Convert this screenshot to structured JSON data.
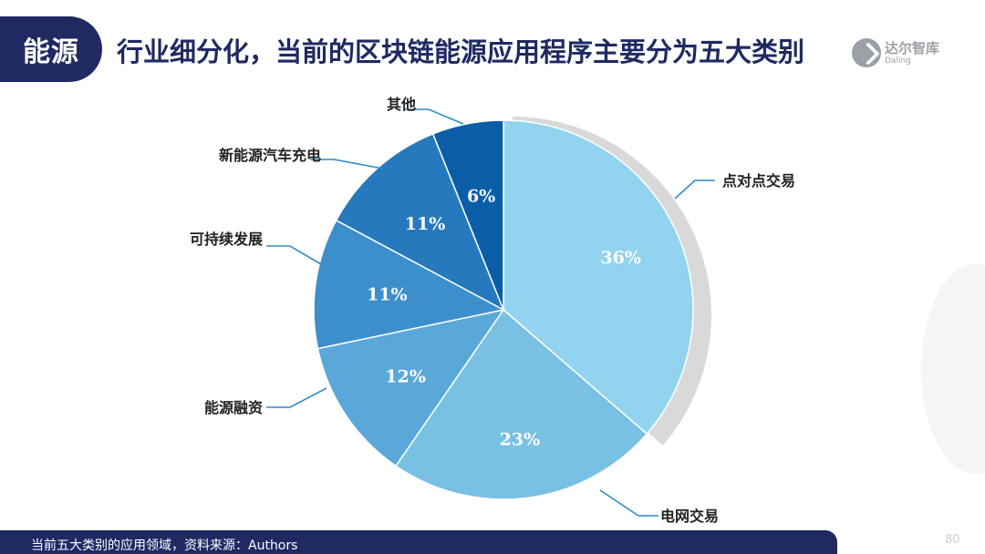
{
  "header": {
    "tab_label": "能源",
    "title": "行业细分化，当前的区块链能源应用程序主要分为五大类别"
  },
  "logo": {
    "name_cn": "达尔智库",
    "name_en": "Daling"
  },
  "footer": {
    "caption": "当前五大类别的应用领域，资料来源：Authors",
    "page_number": "80"
  },
  "chart_data": {
    "type": "pie",
    "unit": "%",
    "slices": [
      {
        "label": "点对点交易",
        "value": 36,
        "value_label": "36%",
        "color": "#92d4ef"
      },
      {
        "label": "电网交易",
        "value": 23,
        "value_label": "23%",
        "color": "#78c0e4"
      },
      {
        "label": "能源融资",
        "value": 12,
        "value_label": "12%",
        "color": "#5aa8da"
      },
      {
        "label": "可持续发展",
        "value": 11,
        "value_label": "11%",
        "color": "#3d8fcb"
      },
      {
        "label": "新能源汽车充电",
        "value": 11,
        "value_label": "11%",
        "color": "#2679bc"
      },
      {
        "label": "其他",
        "value": 6,
        "value_label": "6%",
        "color": "#0a5ea8"
      }
    ],
    "start_angle_deg": 0,
    "direction": "clockwise",
    "label_color": "#ffffff",
    "leader_line_color": "#2e8bc9",
    "shadow_color": "#d9d9d9"
  }
}
